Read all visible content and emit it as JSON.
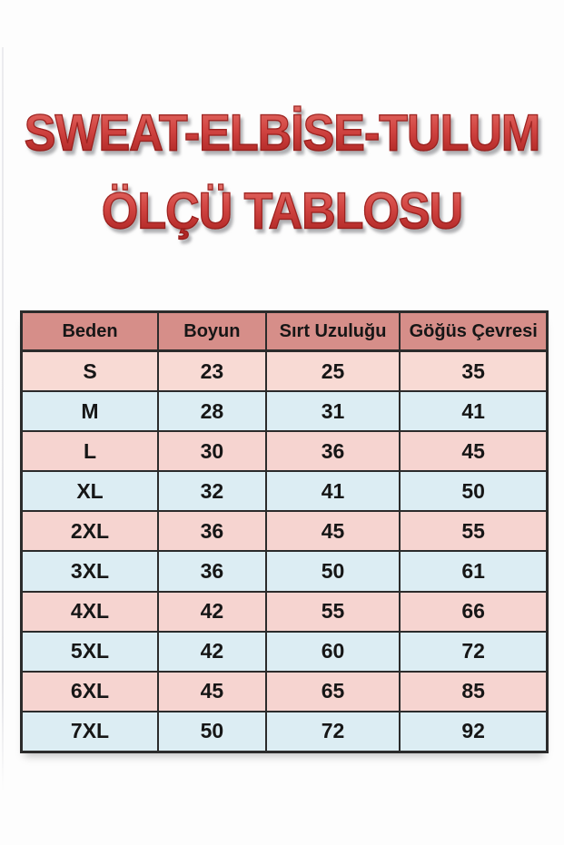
{
  "title": {
    "line1": "SWEAT-ELBİSE-TULUM",
    "line2": "ÖLÇÜ TABLOSU"
  },
  "colors": {
    "title_light": "#e97a72",
    "title_mid": "#d24542",
    "title_dark": "#ad2523",
    "header_bg": "#d68e89",
    "row_pink": "#f6d4d0",
    "row_blue": "#dcedf3",
    "border": "#2b2b2b"
  },
  "table": {
    "headers": [
      "Beden",
      "Boyun",
      "Sırt Uzuluğu",
      "Göğüs Çevresi"
    ],
    "col_widths_pct": [
      26,
      20.5,
      25.5,
      28
    ],
    "rows": [
      {
        "size": "S",
        "values": [
          "23",
          "25",
          "35"
        ]
      },
      {
        "size": "M",
        "values": [
          "28",
          "31",
          "41"
        ]
      },
      {
        "size": "L",
        "values": [
          "30",
          "36",
          "45"
        ]
      },
      {
        "size": "XL",
        "values": [
          "32",
          "41",
          "50"
        ]
      },
      {
        "size": "2XL",
        "values": [
          "36",
          "45",
          "55"
        ]
      },
      {
        "size": "3XL",
        "values": [
          "36",
          "50",
          "61"
        ]
      },
      {
        "size": "4XL",
        "values": [
          "42",
          "55",
          "66"
        ]
      },
      {
        "size": "5XL",
        "values": [
          "42",
          "60",
          "72"
        ]
      },
      {
        "size": "6XL",
        "values": [
          "45",
          "65",
          "85"
        ]
      },
      {
        "size": "7XL",
        "values": [
          "50",
          "72",
          "92"
        ]
      }
    ]
  },
  "chart_data": {
    "type": "table",
    "title": "SWEAT-ELBİSE-TULUM ÖLÇÜ TABLOSU",
    "columns": [
      "Beden",
      "Boyun",
      "Sırt Uzuluğu",
      "Göğüs Çevresi"
    ],
    "rows": [
      [
        "S",
        23,
        25,
        35
      ],
      [
        "M",
        28,
        31,
        41
      ],
      [
        "L",
        30,
        36,
        45
      ],
      [
        "XL",
        32,
        41,
        50
      ],
      [
        "2XL",
        36,
        45,
        55
      ],
      [
        "3XL",
        36,
        50,
        61
      ],
      [
        "4XL",
        42,
        55,
        66
      ],
      [
        "5XL",
        42,
        60,
        72
      ],
      [
        "6XL",
        45,
        65,
        85
      ],
      [
        "7XL",
        50,
        72,
        92
      ]
    ]
  }
}
